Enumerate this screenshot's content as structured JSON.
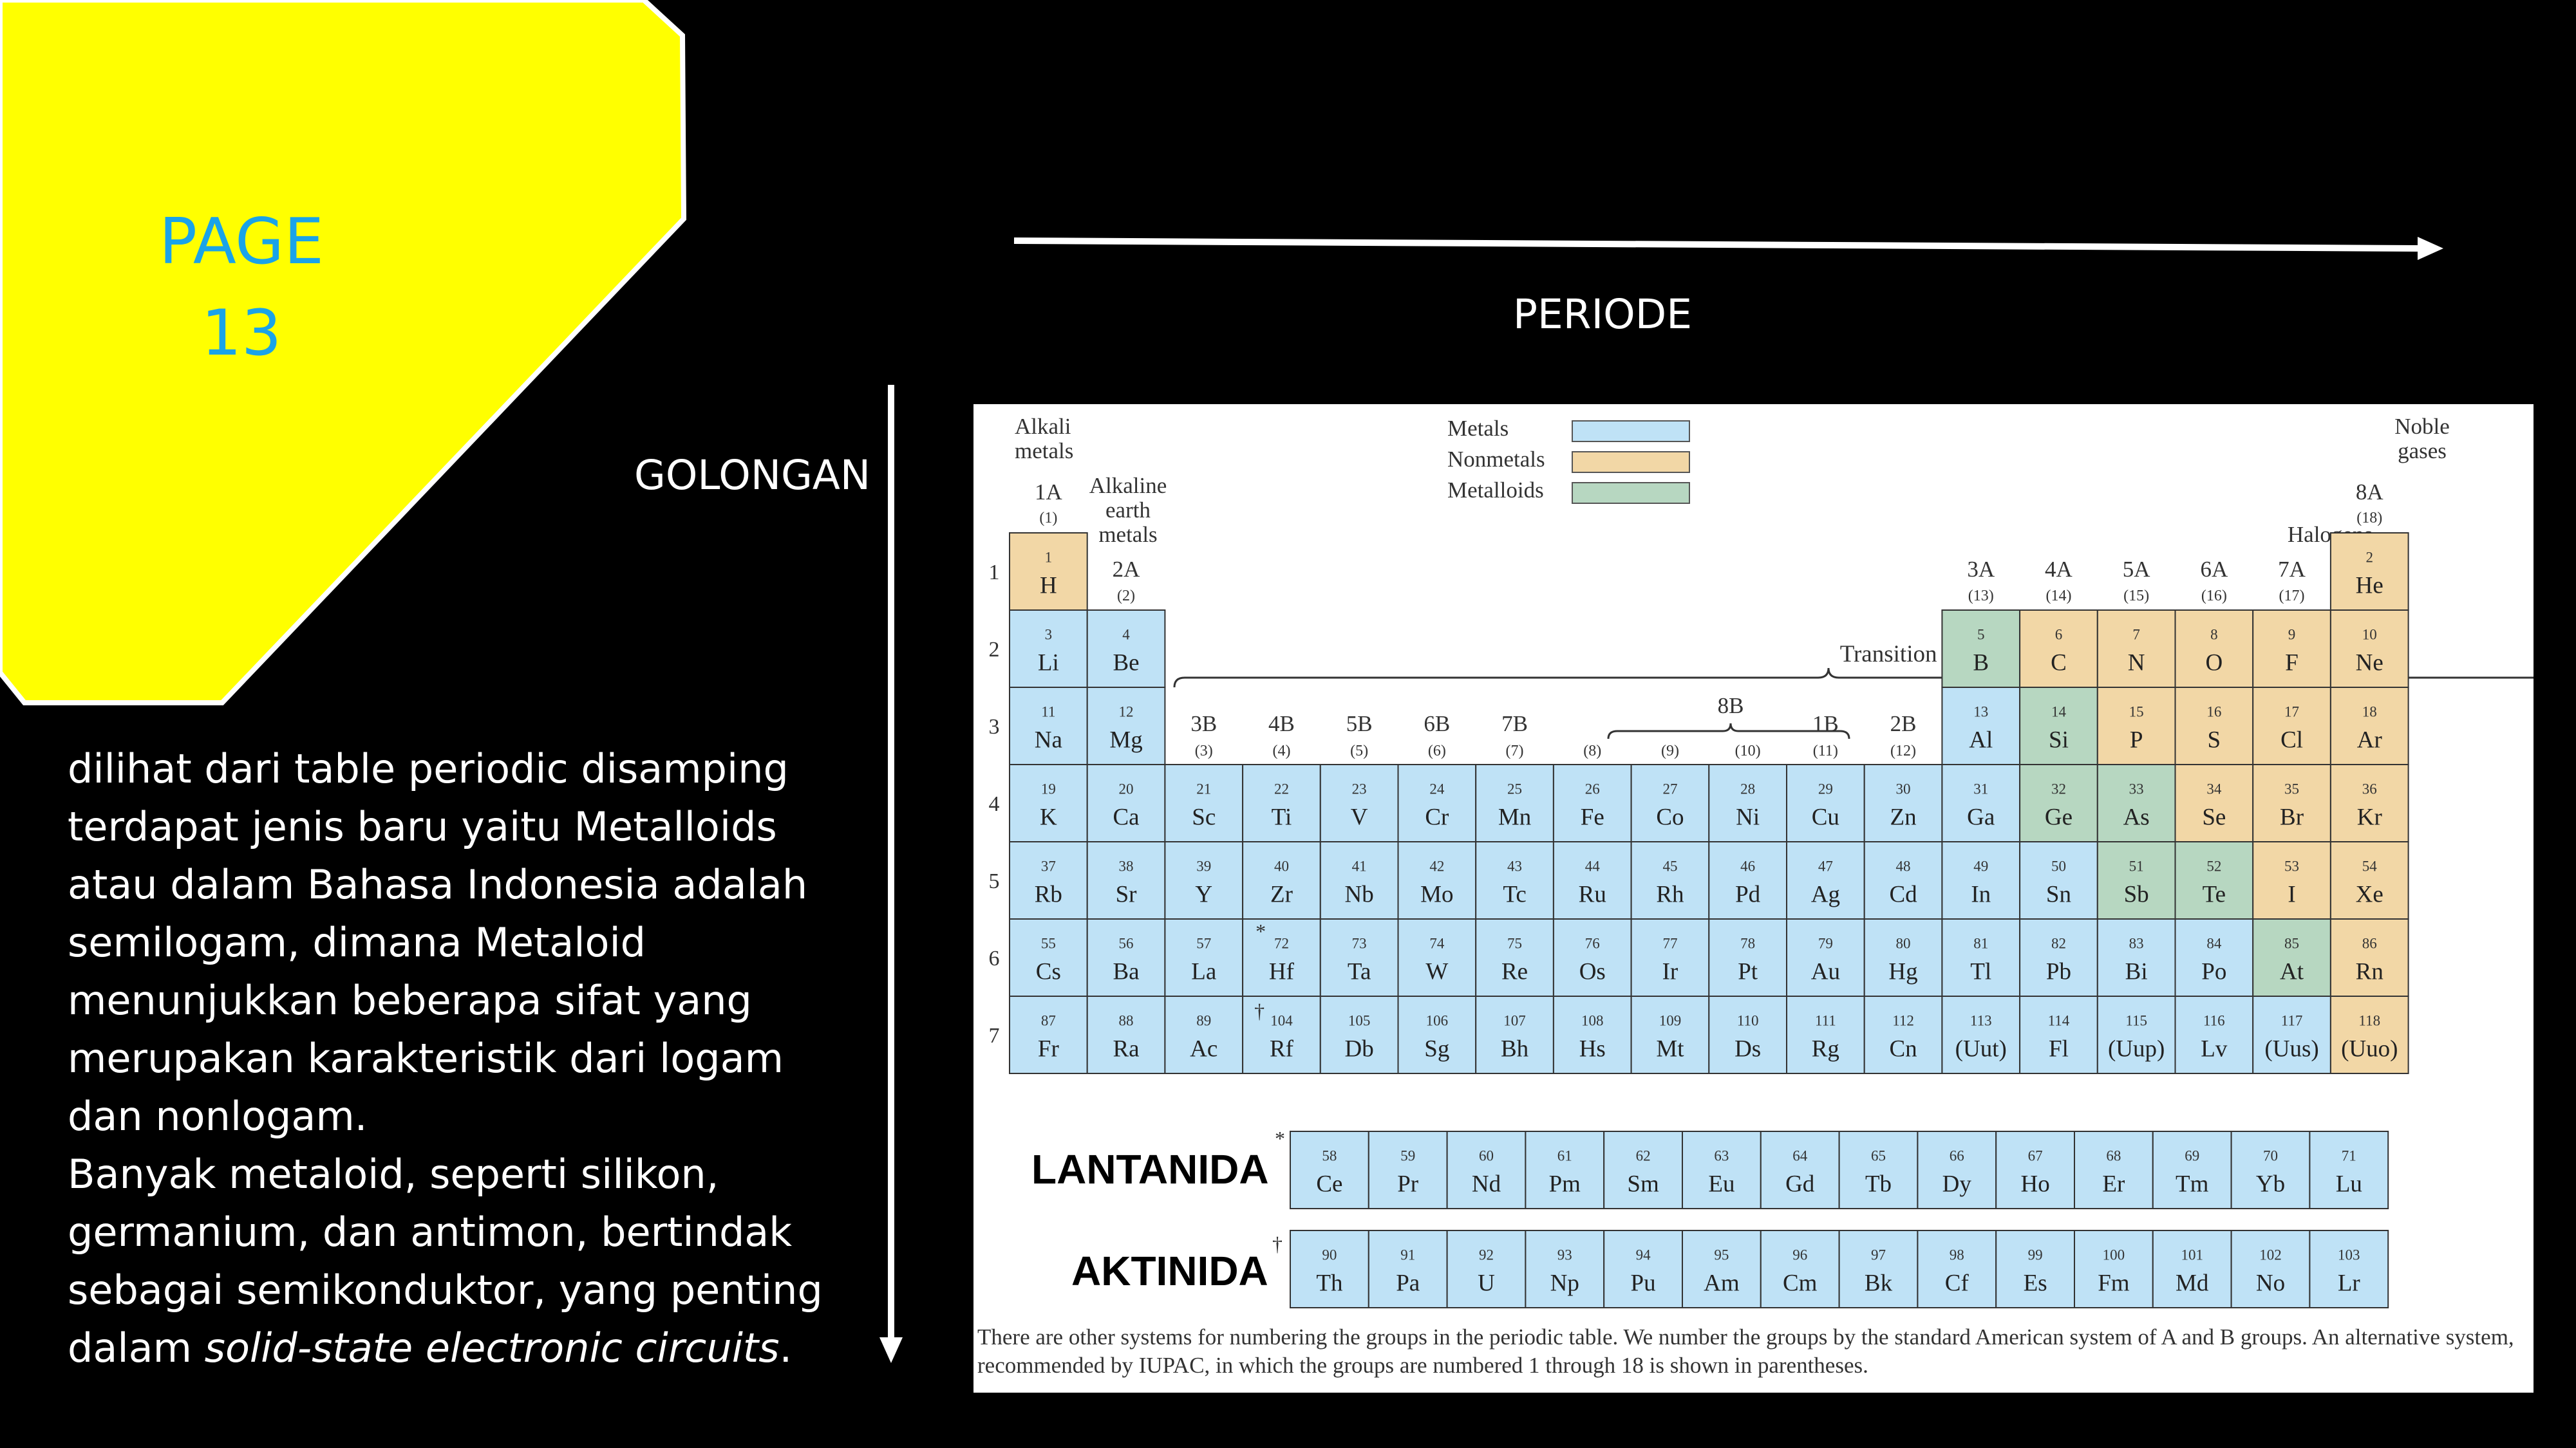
{
  "slide": {
    "page_label": "PAGE\n13",
    "periode_label": "PERIODE",
    "golongan_label": "GOLONGAN",
    "description": {
      "paragraph1": "dilihat dari table periodic disamping terdapat jenis baru yaitu Metalloids atau dalam Bahasa Indonesia adalah semilogam, dimana Metaloid menunjukkan beberapa sifat yang merupakan karakteristik dari logam dan nonlogam.",
      "paragraph2_start": "Banyak metaloid, seperti silikon, germanium, dan antimon, bertindak sebagai semikonduktor, yang penting dalam ",
      "paragraph2_italic": "solid-state electronic circuits",
      "paragraph2_end": "."
    },
    "lantanida_label": "LANTANIDA",
    "aktinida_label": "AKTINIDA",
    "colors": {
      "background": "#000000",
      "yellow": "#ffff00",
      "page_label": "#1aa3e8",
      "metals": "#bfe2f6",
      "nonmetals": "#f2d7a6",
      "metalloids": "#b7d7c1"
    }
  },
  "periodic_table": {
    "legend": [
      {
        "label": "Metals",
        "category": "metal"
      },
      {
        "label": "Nonmetals",
        "category": "nonmetal"
      },
      {
        "label": "Metalloids",
        "category": "metalloid"
      }
    ],
    "labels": {
      "alkali": "Alkali\nmetals",
      "alkaline": "Alkaline\nearth\nmetals",
      "noble": "Noble\ngases",
      "halogens": "Halogens",
      "transition": "Transition metals",
      "eightb": "8B",
      "lanthanide_mark": "*",
      "actinide_mark": "†"
    },
    "groups": [
      {
        "col": 1,
        "name": "1A",
        "iupac": "(1)"
      },
      {
        "col": 2,
        "name": "2A",
        "iupac": "(2)"
      },
      {
        "col": 3,
        "name": "3B",
        "iupac": "(3)"
      },
      {
        "col": 4,
        "name": "4B",
        "iupac": "(4)"
      },
      {
        "col": 5,
        "name": "5B",
        "iupac": "(5)"
      },
      {
        "col": 6,
        "name": "6B",
        "iupac": "(6)"
      },
      {
        "col": 7,
        "name": "7B",
        "iupac": "(7)"
      },
      {
        "col": 8,
        "name": "",
        "iupac": "(8)"
      },
      {
        "col": 9,
        "name": "",
        "iupac": "(9)"
      },
      {
        "col": 10,
        "name": "",
        "iupac": "(10)"
      },
      {
        "col": 11,
        "name": "1B",
        "iupac": "(11)"
      },
      {
        "col": 12,
        "name": "2B",
        "iupac": "(12)"
      },
      {
        "col": 13,
        "name": "3A",
        "iupac": "(13)"
      },
      {
        "col": 14,
        "name": "4A",
        "iupac": "(14)"
      },
      {
        "col": 15,
        "name": "5A",
        "iupac": "(15)"
      },
      {
        "col": 16,
        "name": "6A",
        "iupac": "(16)"
      },
      {
        "col": 17,
        "name": "7A",
        "iupac": "(17)"
      },
      {
        "col": 18,
        "name": "8A",
        "iupac": "(18)"
      }
    ],
    "period_numbers": [
      "1",
      "2",
      "3",
      "4",
      "5",
      "6",
      "7"
    ],
    "main_rows": [
      {
        "period": 1,
        "cells": [
          {
            "n": "1",
            "s": "H",
            "c": "nonmetal",
            "col": 1
          },
          {
            "n": "2",
            "s": "He",
            "c": "nonmetal",
            "col": 18
          }
        ]
      },
      {
        "period": 2,
        "cells": [
          {
            "n": "3",
            "s": "Li",
            "c": "metal",
            "col": 1
          },
          {
            "n": "4",
            "s": "Be",
            "c": "metal",
            "col": 2
          },
          {
            "n": "5",
            "s": "B",
            "c": "metalloid",
            "col": 13
          },
          {
            "n": "6",
            "s": "C",
            "c": "nonmetal",
            "col": 14
          },
          {
            "n": "7",
            "s": "N",
            "c": "nonmetal",
            "col": 15
          },
          {
            "n": "8",
            "s": "O",
            "c": "nonmetal",
            "col": 16
          },
          {
            "n": "9",
            "s": "F",
            "c": "nonmetal",
            "col": 17
          },
          {
            "n": "10",
            "s": "Ne",
            "c": "nonmetal",
            "col": 18
          }
        ]
      },
      {
        "period": 3,
        "cells": [
          {
            "n": "11",
            "s": "Na",
            "c": "metal",
            "col": 1
          },
          {
            "n": "12",
            "s": "Mg",
            "c": "metal",
            "col": 2
          },
          {
            "n": "13",
            "s": "Al",
            "c": "metal",
            "col": 13
          },
          {
            "n": "14",
            "s": "Si",
            "c": "metalloid",
            "col": 14
          },
          {
            "n": "15",
            "s": "P",
            "c": "nonmetal",
            "col": 15
          },
          {
            "n": "16",
            "s": "S",
            "c": "nonmetal",
            "col": 16
          },
          {
            "n": "17",
            "s": "Cl",
            "c": "nonmetal",
            "col": 17
          },
          {
            "n": "18",
            "s": "Ar",
            "c": "nonmetal",
            "col": 18
          }
        ]
      },
      {
        "period": 4,
        "cells": [
          {
            "n": "19",
            "s": "K",
            "c": "metal",
            "col": 1
          },
          {
            "n": "20",
            "s": "Ca",
            "c": "metal",
            "col": 2
          },
          {
            "n": "21",
            "s": "Sc",
            "c": "metal",
            "col": 3
          },
          {
            "n": "22",
            "s": "Ti",
            "c": "metal",
            "col": 4
          },
          {
            "n": "23",
            "s": "V",
            "c": "metal",
            "col": 5
          },
          {
            "n": "24",
            "s": "Cr",
            "c": "metal",
            "col": 6
          },
          {
            "n": "25",
            "s": "Mn",
            "c": "metal",
            "col": 7
          },
          {
            "n": "26",
            "s": "Fe",
            "c": "metal",
            "col": 8
          },
          {
            "n": "27",
            "s": "Co",
            "c": "metal",
            "col": 9
          },
          {
            "n": "28",
            "s": "Ni",
            "c": "metal",
            "col": 10
          },
          {
            "n": "29",
            "s": "Cu",
            "c": "metal",
            "col": 11
          },
          {
            "n": "30",
            "s": "Zn",
            "c": "metal",
            "col": 12
          },
          {
            "n": "31",
            "s": "Ga",
            "c": "metal",
            "col": 13
          },
          {
            "n": "32",
            "s": "Ge",
            "c": "metalloid",
            "col": 14
          },
          {
            "n": "33",
            "s": "As",
            "c": "metalloid",
            "col": 15
          },
          {
            "n": "34",
            "s": "Se",
            "c": "nonmetal",
            "col": 16
          },
          {
            "n": "35",
            "s": "Br",
            "c": "nonmetal",
            "col": 17
          },
          {
            "n": "36",
            "s": "Kr",
            "c": "nonmetal",
            "col": 18
          }
        ]
      },
      {
        "period": 5,
        "cells": [
          {
            "n": "37",
            "s": "Rb",
            "c": "metal",
            "col": 1
          },
          {
            "n": "38",
            "s": "Sr",
            "c": "metal",
            "col": 2
          },
          {
            "n": "39",
            "s": "Y",
            "c": "metal",
            "col": 3
          },
          {
            "n": "40",
            "s": "Zr",
            "c": "metal",
            "col": 4
          },
          {
            "n": "41",
            "s": "Nb",
            "c": "metal",
            "col": 5
          },
          {
            "n": "42",
            "s": "Mo",
            "c": "metal",
            "col": 6
          },
          {
            "n": "43",
            "s": "Tc",
            "c": "metal",
            "col": 7
          },
          {
            "n": "44",
            "s": "Ru",
            "c": "metal",
            "col": 8
          },
          {
            "n": "45",
            "s": "Rh",
            "c": "metal",
            "col": 9
          },
          {
            "n": "46",
            "s": "Pd",
            "c": "metal",
            "col": 10
          },
          {
            "n": "47",
            "s": "Ag",
            "c": "metal",
            "col": 11
          },
          {
            "n": "48",
            "s": "Cd",
            "c": "metal",
            "col": 12
          },
          {
            "n": "49",
            "s": "In",
            "c": "metal",
            "col": 13
          },
          {
            "n": "50",
            "s": "Sn",
            "c": "metal",
            "col": 14
          },
          {
            "n": "51",
            "s": "Sb",
            "c": "metalloid",
            "col": 15
          },
          {
            "n": "52",
            "s": "Te",
            "c": "metalloid",
            "col": 16
          },
          {
            "n": "53",
            "s": "I",
            "c": "nonmetal",
            "col": 17
          },
          {
            "n": "54",
            "s": "Xe",
            "c": "nonmetal",
            "col": 18
          }
        ]
      },
      {
        "period": 6,
        "cells": [
          {
            "n": "55",
            "s": "Cs",
            "c": "metal",
            "col": 1
          },
          {
            "n": "56",
            "s": "Ba",
            "c": "metal",
            "col": 2
          },
          {
            "n": "57",
            "s": "La",
            "c": "metal",
            "col": 3
          },
          {
            "n": "72",
            "s": "Hf",
            "c": "metal",
            "col": 4
          },
          {
            "n": "73",
            "s": "Ta",
            "c": "metal",
            "col": 5
          },
          {
            "n": "74",
            "s": "W",
            "c": "metal",
            "col": 6
          },
          {
            "n": "75",
            "s": "Re",
            "c": "metal",
            "col": 7
          },
          {
            "n": "76",
            "s": "Os",
            "c": "metal",
            "col": 8
          },
          {
            "n": "77",
            "s": "Ir",
            "c": "metal",
            "col": 9
          },
          {
            "n": "78",
            "s": "Pt",
            "c": "metal",
            "col": 10
          },
          {
            "n": "79",
            "s": "Au",
            "c": "metal",
            "col": 11
          },
          {
            "n": "80",
            "s": "Hg",
            "c": "metal",
            "col": 12
          },
          {
            "n": "81",
            "s": "Tl",
            "c": "metal",
            "col": 13
          },
          {
            "n": "82",
            "s": "Pb",
            "c": "metal",
            "col": 14
          },
          {
            "n": "83",
            "s": "Bi",
            "c": "metal",
            "col": 15
          },
          {
            "n": "84",
            "s": "Po",
            "c": "metal",
            "col": 16
          },
          {
            "n": "85",
            "s": "At",
            "c": "metalloid",
            "col": 17
          },
          {
            "n": "86",
            "s": "Rn",
            "c": "nonmetal",
            "col": 18
          }
        ]
      },
      {
        "period": 7,
        "cells": [
          {
            "n": "87",
            "s": "Fr",
            "c": "metal",
            "col": 1
          },
          {
            "n": "88",
            "s": "Ra",
            "c": "metal",
            "col": 2
          },
          {
            "n": "89",
            "s": "Ac",
            "c": "metal",
            "col": 3
          },
          {
            "n": "104",
            "s": "Rf",
            "c": "metal",
            "col": 4
          },
          {
            "n": "105",
            "s": "Db",
            "c": "metal",
            "col": 5
          },
          {
            "n": "106",
            "s": "Sg",
            "c": "metal",
            "col": 6
          },
          {
            "n": "107",
            "s": "Bh",
            "c": "metal",
            "col": 7
          },
          {
            "n": "108",
            "s": "Hs",
            "c": "metal",
            "col": 8
          },
          {
            "n": "109",
            "s": "Mt",
            "c": "metal",
            "col": 9
          },
          {
            "n": "110",
            "s": "Ds",
            "c": "metal",
            "col": 10
          },
          {
            "n": "111",
            "s": "Rg",
            "c": "metal",
            "col": 11
          },
          {
            "n": "112",
            "s": "Cn",
            "c": "metal",
            "col": 12
          },
          {
            "n": "113",
            "s": "(Uut)",
            "c": "metal",
            "col": 13
          },
          {
            "n": "114",
            "s": "Fl",
            "c": "metal",
            "col": 14
          },
          {
            "n": "115",
            "s": "(Uup)",
            "c": "metal",
            "col": 15
          },
          {
            "n": "116",
            "s": "Lv",
            "c": "metal",
            "col": 16
          },
          {
            "n": "117",
            "s": "(Uus)",
            "c": "metal",
            "col": 17
          },
          {
            "n": "118",
            "s": "(Uuo)",
            "c": "nonmetal",
            "col": 18
          }
        ]
      }
    ],
    "lanthanides": [
      {
        "n": "58",
        "s": "Ce"
      },
      {
        "n": "59",
        "s": "Pr"
      },
      {
        "n": "60",
        "s": "Nd"
      },
      {
        "n": "61",
        "s": "Pm"
      },
      {
        "n": "62",
        "s": "Sm"
      },
      {
        "n": "63",
        "s": "Eu"
      },
      {
        "n": "64",
        "s": "Gd"
      },
      {
        "n": "65",
        "s": "Tb"
      },
      {
        "n": "66",
        "s": "Dy"
      },
      {
        "n": "67",
        "s": "Ho"
      },
      {
        "n": "68",
        "s": "Er"
      },
      {
        "n": "69",
        "s": "Tm"
      },
      {
        "n": "70",
        "s": "Yb"
      },
      {
        "n": "71",
        "s": "Lu"
      }
    ],
    "actinides": [
      {
        "n": "90",
        "s": "Th"
      },
      {
        "n": "91",
        "s": "Pa"
      },
      {
        "n": "92",
        "s": "U"
      },
      {
        "n": "93",
        "s": "Np"
      },
      {
        "n": "94",
        "s": "Pu"
      },
      {
        "n": "95",
        "s": "Am"
      },
      {
        "n": "96",
        "s": "Cm"
      },
      {
        "n": "97",
        "s": "Bk"
      },
      {
        "n": "98",
        "s": "Cf"
      },
      {
        "n": "99",
        "s": "Es"
      },
      {
        "n": "100",
        "s": "Fm"
      },
      {
        "n": "101",
        "s": "Md"
      },
      {
        "n": "102",
        "s": "No"
      },
      {
        "n": "103",
        "s": "Lr"
      }
    ],
    "note": "There are other systems for numbering the groups in the periodic table. We number the groups by the standard American system of A and B groups. An alternative system, recommended by IUPAC, in which the groups are numbered 1 through 18 is shown in parentheses."
  }
}
